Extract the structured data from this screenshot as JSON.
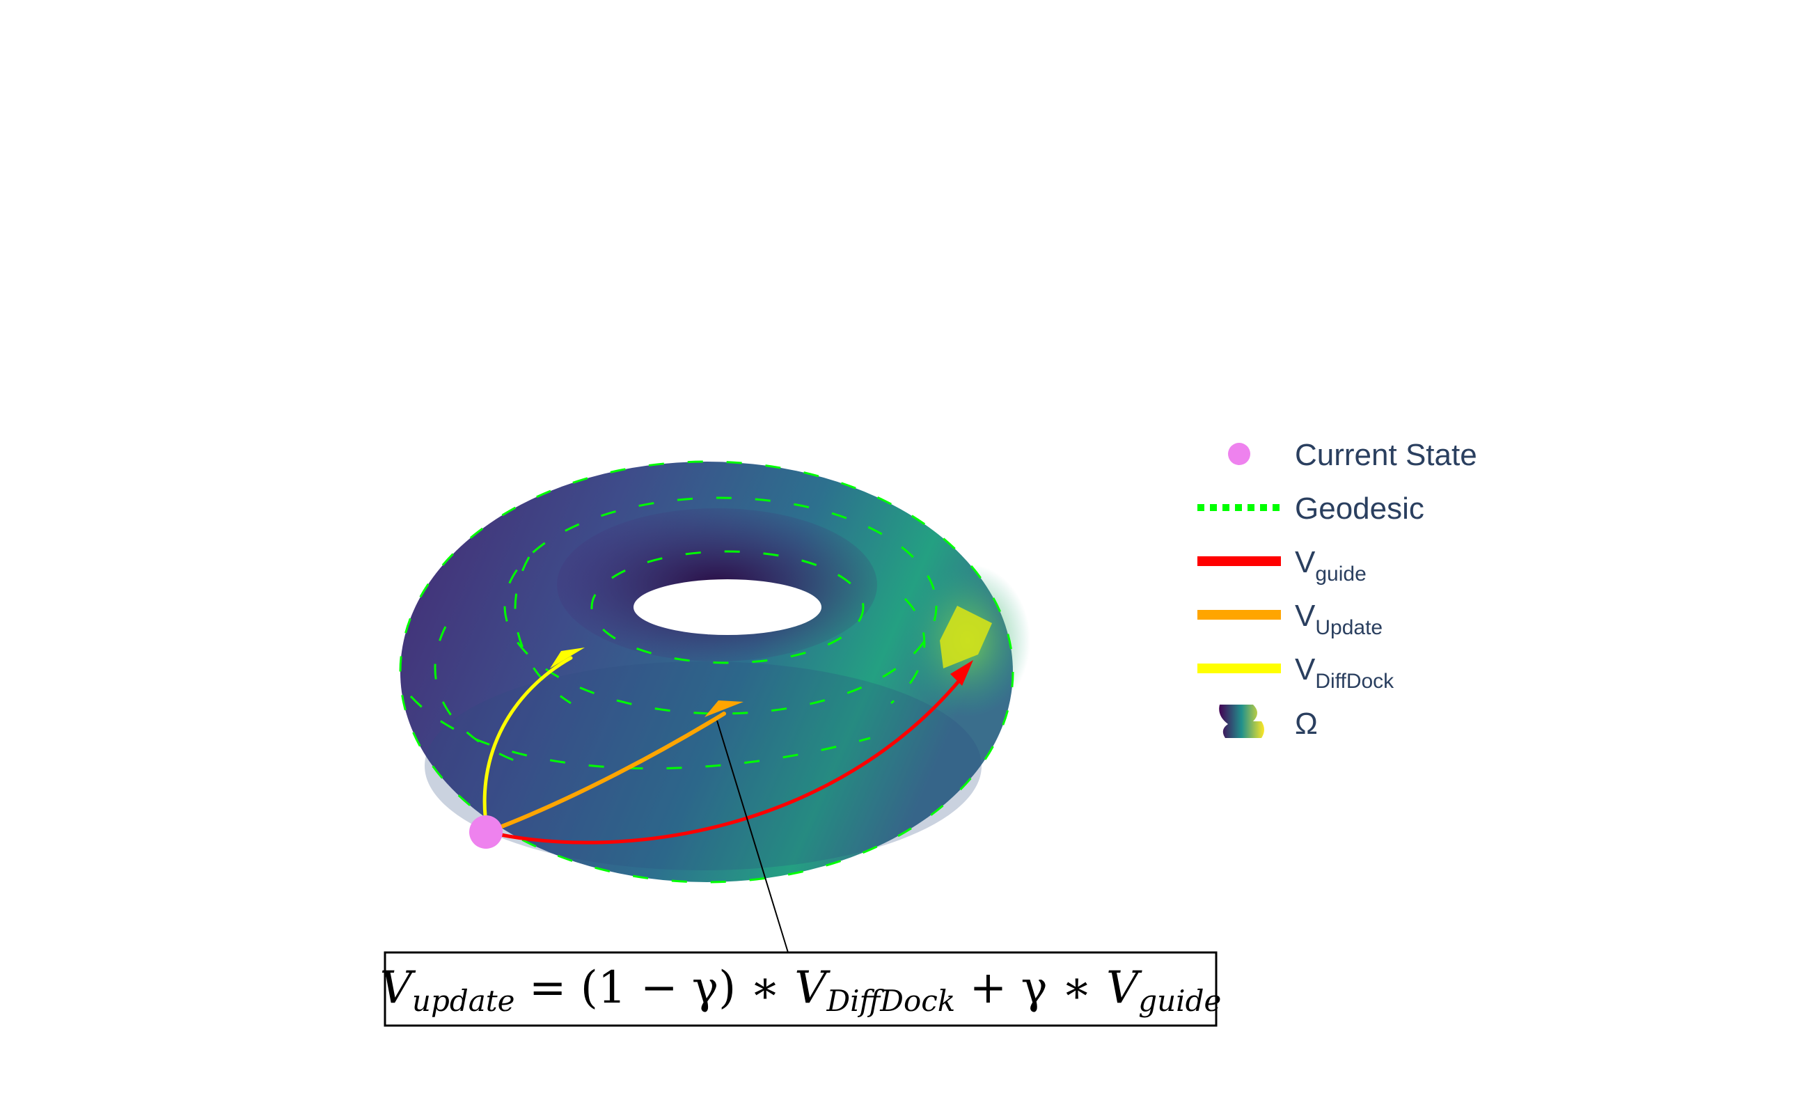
{
  "colors": {
    "current_state": "#ee82ee",
    "geodesic": "#00ff00",
    "v_guide": "#ff0000",
    "v_update": "#ffa500",
    "v_diffdock": "#ffff00",
    "legend_text": "#2a3f5f"
  },
  "legend": {
    "current_state": "Current State",
    "geodesic": "Geodesic",
    "v_guide": {
      "main": "V",
      "sub": "guide"
    },
    "v_update": {
      "main": "V",
      "sub": "Update"
    },
    "v_diffdock": {
      "main": "V",
      "sub": "DiffDock"
    },
    "omega": "Ω"
  },
  "equation": {
    "lhs_var": "V",
    "lhs_sub": "update",
    "eq": " = (1 − γ) ∗ ",
    "term1_var": "V",
    "term1_sub": "DiffDock",
    "plus": " + γ ∗ ",
    "term2_var": "V",
    "term2_sub": "guide"
  },
  "colorscale": "viridis"
}
